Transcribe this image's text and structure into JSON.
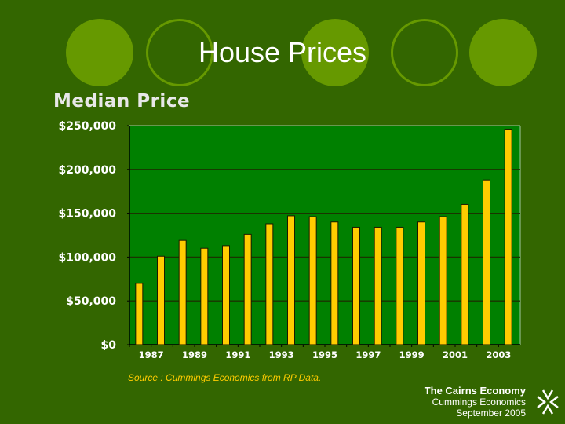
{
  "slide_title": "House Prices",
  "chart_data": {
    "type": "bar",
    "title": "Median Price",
    "xlabel": "",
    "ylabel": "",
    "categories": [
      "1987",
      "1988",
      "1989",
      "1990",
      "1991",
      "1992",
      "1993",
      "1994",
      "1995",
      "1996",
      "1997",
      "1998",
      "1999",
      "2000",
      "2001",
      "2002",
      "2003",
      "2004"
    ],
    "x_tick_labels": [
      "1987",
      "1989",
      "1991",
      "1993",
      "1995",
      "1997",
      "1999",
      "2001",
      "2003"
    ],
    "values": [
      70000,
      101000,
      119000,
      110000,
      113000,
      126000,
      138000,
      147000,
      146000,
      140000,
      134000,
      134000,
      134000,
      140000,
      146000,
      160000,
      188000,
      246000
    ],
    "ylim": [
      0,
      250000
    ],
    "y_tick_labels": [
      "$0",
      "$50,000",
      "$100,000",
      "$150,000",
      "$200,000",
      "$250,000"
    ],
    "grid": true,
    "colors": {
      "plot_bg": "#008000",
      "bar": "#ffcc00",
      "bar_edge": "#1a1a00"
    }
  },
  "source": "Source : Cummings Economics from RP Data.",
  "footer": {
    "title": "The Cairns Economy",
    "org": "Cummings Economics",
    "date": "September 2005"
  },
  "colors": {
    "background": "#336600",
    "accent": "#669900"
  }
}
